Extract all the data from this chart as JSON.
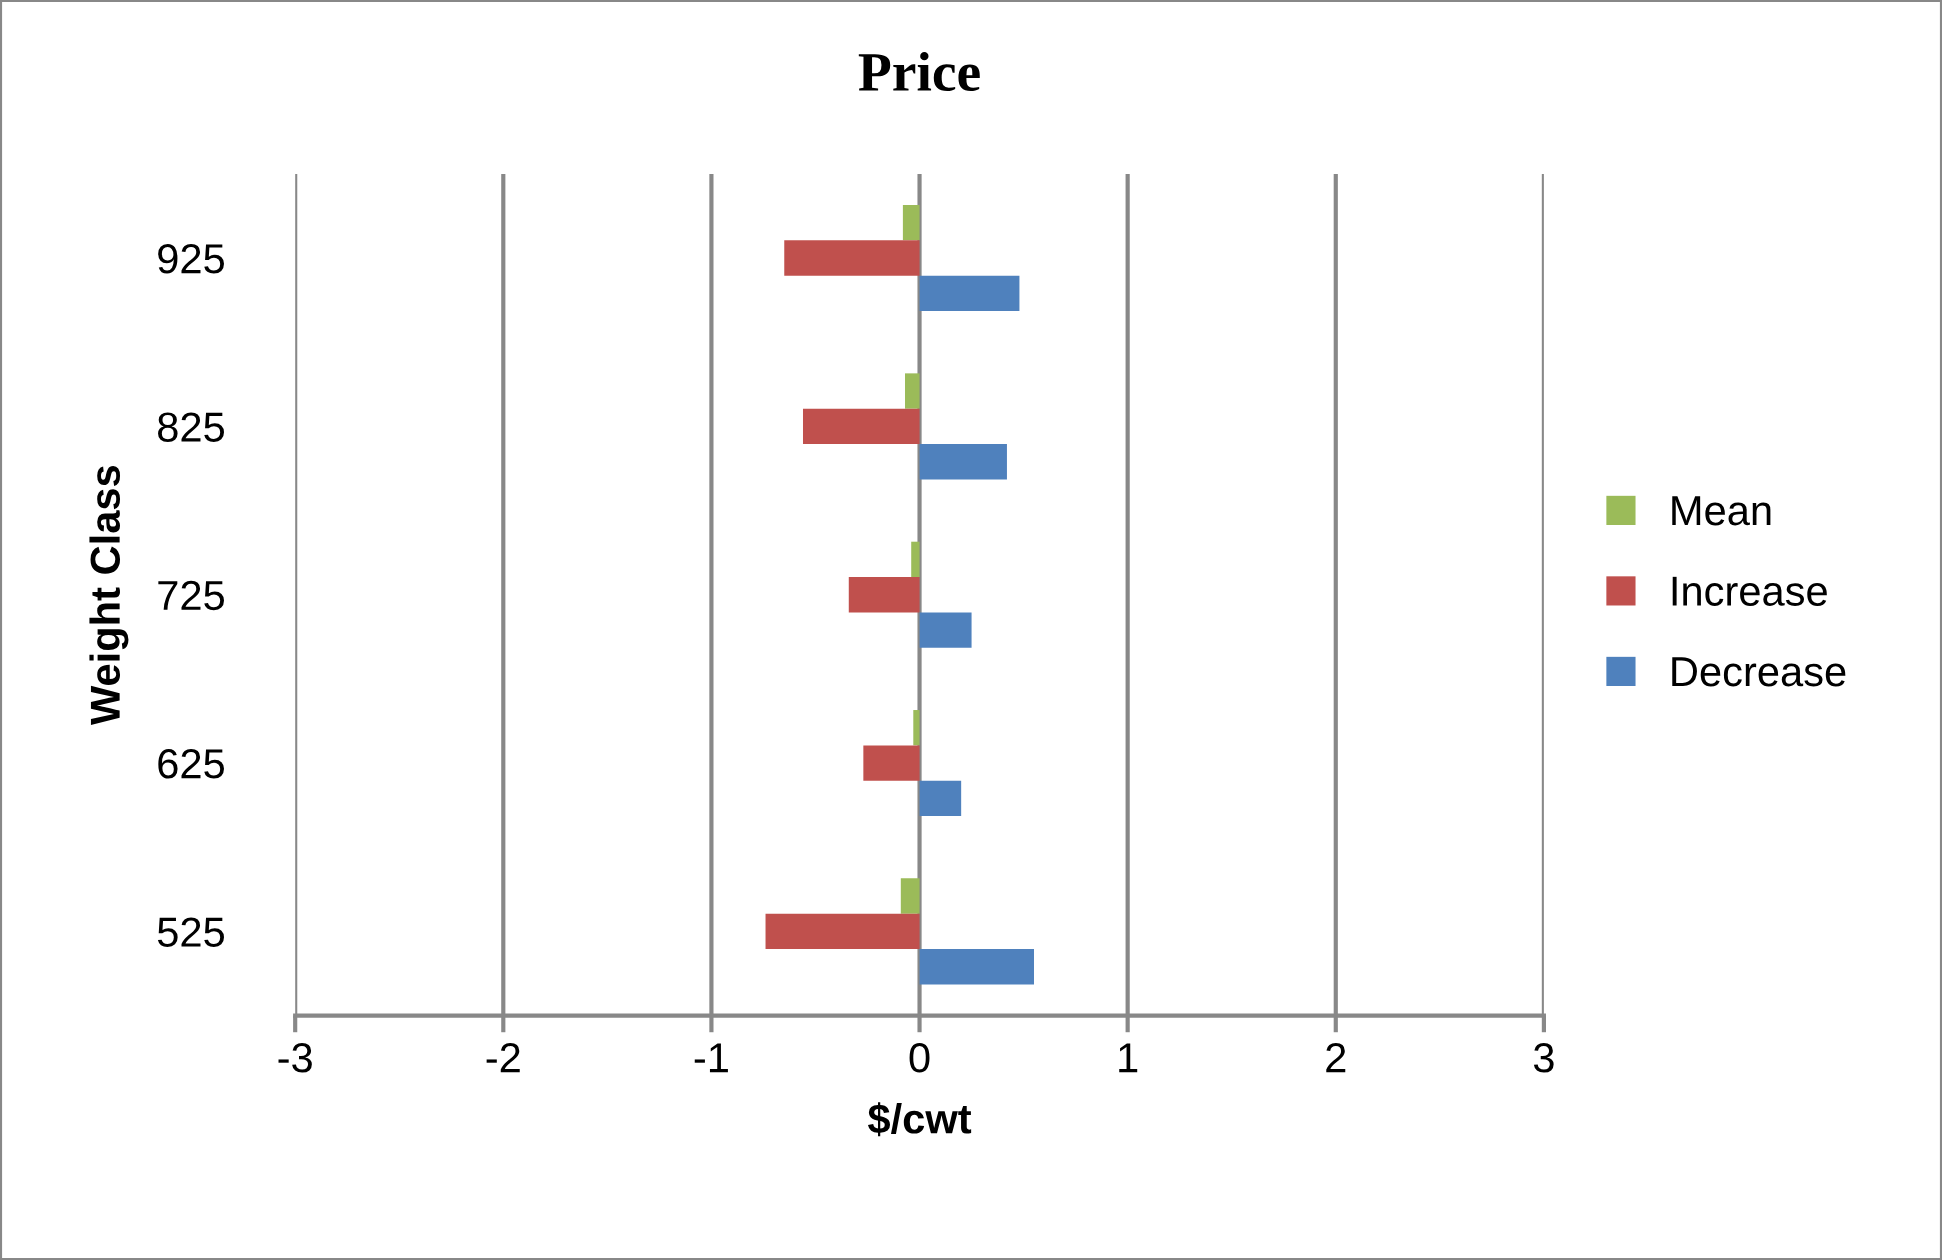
{
  "chart_data": {
    "type": "bar",
    "orientation": "horizontal",
    "title": "Price",
    "xlabel": "$/cwt",
    "ylabel": "Weight Class",
    "categories": [
      "925",
      "825",
      "725",
      "625",
      "525"
    ],
    "series": [
      {
        "name": "Mean",
        "color": "#9bbb59",
        "values": [
          -0.08,
          -0.07,
          -0.04,
          -0.03,
          -0.09
        ]
      },
      {
        "name": "Increase",
        "color": "#c0504d",
        "values": [
          -0.65,
          -0.56,
          -0.34,
          -0.27,
          -0.74
        ]
      },
      {
        "name": "Decrease",
        "color": "#4f81bd",
        "values": [
          0.48,
          0.42,
          0.25,
          0.2,
          0.55
        ]
      }
    ],
    "xlim": [
      -3,
      3
    ],
    "xticks": [
      -3,
      -2,
      -1,
      0,
      1,
      2,
      3
    ],
    "grid": "x",
    "legend": "right"
  }
}
